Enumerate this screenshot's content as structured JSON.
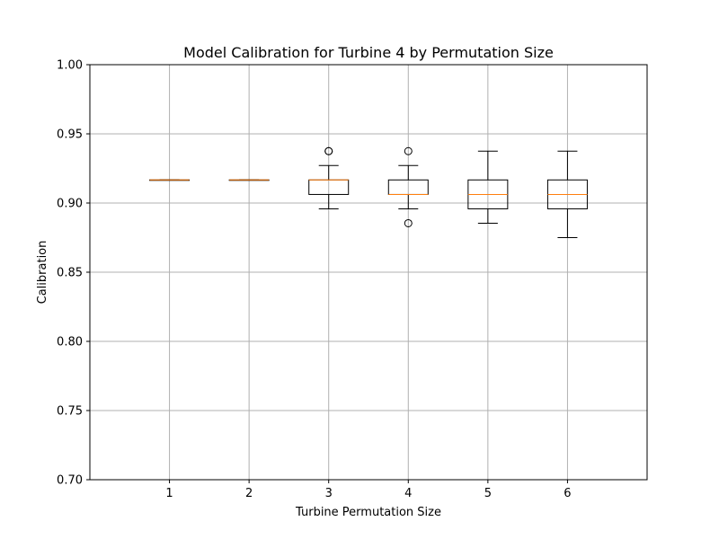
{
  "chart_data": {
    "type": "box",
    "title": "Model Calibration for Turbine 4 by Permutation Size",
    "xlabel": "Turbine Permutation Size",
    "ylabel": "Calibration",
    "ylim": [
      0.7,
      1.0
    ],
    "xlim": [
      0,
      7
    ],
    "yticks": [
      "0.70",
      "0.75",
      "0.80",
      "0.85",
      "0.90",
      "0.95",
      "1.00"
    ],
    "grid": true,
    "median_color": "#ff7f0e",
    "categories": [
      "1",
      "2",
      "3",
      "4",
      "5",
      "6"
    ],
    "boxes": [
      {
        "x": 1,
        "whislo": 0.9167,
        "q1": 0.9167,
        "med": 0.9167,
        "q3": 0.9167,
        "whishi": 0.9167,
        "fliers": []
      },
      {
        "x": 2,
        "whislo": 0.9167,
        "q1": 0.9167,
        "med": 0.9167,
        "q3": 0.9167,
        "whishi": 0.9167,
        "fliers": []
      },
      {
        "x": 3,
        "whislo": 0.8958,
        "q1": 0.9062,
        "med": 0.9167,
        "q3": 0.9167,
        "whishi": 0.9271,
        "fliers": [
          0.9375,
          0.9375
        ]
      },
      {
        "x": 4,
        "whislo": 0.8958,
        "q1": 0.9062,
        "med": 0.9062,
        "q3": 0.9167,
        "whishi": 0.9271,
        "fliers": [
          0.9375,
          0.8854
        ]
      },
      {
        "x": 5,
        "whislo": 0.8854,
        "q1": 0.8958,
        "med": 0.9062,
        "q3": 0.9167,
        "whishi": 0.9375,
        "fliers": []
      },
      {
        "x": 6,
        "whislo": 0.875,
        "q1": 0.8958,
        "med": 0.9062,
        "q3": 0.9167,
        "whishi": 0.9375,
        "fliers": []
      }
    ]
  }
}
